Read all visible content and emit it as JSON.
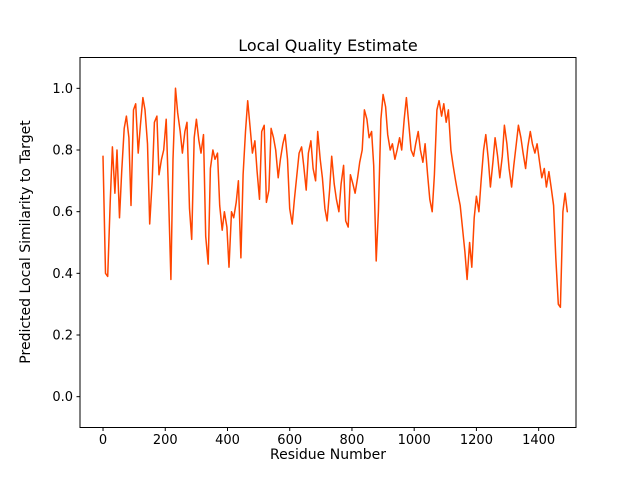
{
  "chart_data": {
    "type": "line",
    "title": "Local Quality Estimate",
    "xlabel": "Residue Number",
    "ylabel": "Predicted Local Similarity to Target",
    "line_color": "#FF4500",
    "background_color": "#FFFFFF",
    "grid": false,
    "legend": null,
    "xlim": [
      -74,
      1520
    ],
    "ylim": [
      -0.1,
      1.1
    ],
    "xticks": [
      0,
      200,
      400,
      600,
      800,
      1000,
      1200,
      1400
    ],
    "xtick_labels": [
      "0",
      "200",
      "400",
      "600",
      "800",
      "1000",
      "1200",
      "1400"
    ],
    "yticks": [
      0.0,
      0.2,
      0.4,
      0.6,
      0.8,
      1.0
    ],
    "ytick_labels": [
      "0.0",
      "0.2",
      "0.4",
      "0.6",
      "0.8",
      "1.0"
    ],
    "points": [
      [
        0,
        0.78
      ],
      [
        8,
        0.4
      ],
      [
        15,
        0.39
      ],
      [
        23,
        0.63
      ],
      [
        30,
        0.81
      ],
      [
        38,
        0.66
      ],
      [
        45,
        0.8
      ],
      [
        53,
        0.58
      ],
      [
        60,
        0.73
      ],
      [
        68,
        0.87
      ],
      [
        75,
        0.91
      ],
      [
        83,
        0.84
      ],
      [
        90,
        0.62
      ],
      [
        98,
        0.93
      ],
      [
        105,
        0.95
      ],
      [
        113,
        0.79
      ],
      [
        120,
        0.88
      ],
      [
        128,
        0.97
      ],
      [
        135,
        0.93
      ],
      [
        143,
        0.82
      ],
      [
        150,
        0.56
      ],
      [
        158,
        0.7
      ],
      [
        165,
        0.89
      ],
      [
        173,
        0.91
      ],
      [
        180,
        0.72
      ],
      [
        188,
        0.77
      ],
      [
        195,
        0.8
      ],
      [
        203,
        0.9
      ],
      [
        210,
        0.67
      ],
      [
        218,
        0.38
      ],
      [
        225,
        0.77
      ],
      [
        233,
        1.0
      ],
      [
        240,
        0.92
      ],
      [
        248,
        0.86
      ],
      [
        255,
        0.79
      ],
      [
        263,
        0.86
      ],
      [
        270,
        0.89
      ],
      [
        278,
        0.61
      ],
      [
        285,
        0.51
      ],
      [
        293,
        0.84
      ],
      [
        300,
        0.9
      ],
      [
        308,
        0.83
      ],
      [
        315,
        0.79
      ],
      [
        323,
        0.85
      ],
      [
        330,
        0.52
      ],
      [
        338,
        0.43
      ],
      [
        345,
        0.74
      ],
      [
        353,
        0.8
      ],
      [
        360,
        0.77
      ],
      [
        368,
        0.79
      ],
      [
        375,
        0.62
      ],
      [
        383,
        0.54
      ],
      [
        390,
        0.6
      ],
      [
        398,
        0.55
      ],
      [
        405,
        0.42
      ],
      [
        413,
        0.6
      ],
      [
        420,
        0.58
      ],
      [
        428,
        0.63
      ],
      [
        435,
        0.7
      ],
      [
        443,
        0.45
      ],
      [
        450,
        0.72
      ],
      [
        458,
        0.86
      ],
      [
        465,
        0.96
      ],
      [
        473,
        0.87
      ],
      [
        480,
        0.79
      ],
      [
        488,
        0.83
      ],
      [
        495,
        0.73
      ],
      [
        503,
        0.64
      ],
      [
        510,
        0.86
      ],
      [
        518,
        0.88
      ],
      [
        525,
        0.63
      ],
      [
        533,
        0.67
      ],
      [
        540,
        0.87
      ],
      [
        548,
        0.84
      ],
      [
        555,
        0.8
      ],
      [
        563,
        0.71
      ],
      [
        570,
        0.77
      ],
      [
        578,
        0.82
      ],
      [
        585,
        0.85
      ],
      [
        593,
        0.77
      ],
      [
        600,
        0.61
      ],
      [
        608,
        0.56
      ],
      [
        615,
        0.64
      ],
      [
        623,
        0.72
      ],
      [
        630,
        0.79
      ],
      [
        638,
        0.81
      ],
      [
        645,
        0.75
      ],
      [
        653,
        0.67
      ],
      [
        660,
        0.79
      ],
      [
        668,
        0.83
      ],
      [
        675,
        0.74
      ],
      [
        683,
        0.7
      ],
      [
        690,
        0.86
      ],
      [
        698,
        0.77
      ],
      [
        705,
        0.71
      ],
      [
        713,
        0.61
      ],
      [
        720,
        0.57
      ],
      [
        728,
        0.67
      ],
      [
        735,
        0.78
      ],
      [
        743,
        0.69
      ],
      [
        750,
        0.64
      ],
      [
        758,
        0.6
      ],
      [
        765,
        0.69
      ],
      [
        773,
        0.75
      ],
      [
        780,
        0.57
      ],
      [
        788,
        0.55
      ],
      [
        795,
        0.72
      ],
      [
        803,
        0.69
      ],
      [
        810,
        0.66
      ],
      [
        818,
        0.71
      ],
      [
        825,
        0.76
      ],
      [
        833,
        0.8
      ],
      [
        840,
        0.93
      ],
      [
        848,
        0.9
      ],
      [
        855,
        0.84
      ],
      [
        863,
        0.86
      ],
      [
        870,
        0.75
      ],
      [
        878,
        0.44
      ],
      [
        885,
        0.6
      ],
      [
        893,
        0.9
      ],
      [
        900,
        0.98
      ],
      [
        908,
        0.94
      ],
      [
        915,
        0.85
      ],
      [
        923,
        0.8
      ],
      [
        930,
        0.82
      ],
      [
        938,
        0.77
      ],
      [
        945,
        0.8
      ],
      [
        953,
        0.84
      ],
      [
        960,
        0.8
      ],
      [
        968,
        0.9
      ],
      [
        975,
        0.97
      ],
      [
        983,
        0.88
      ],
      [
        990,
        0.8
      ],
      [
        998,
        0.78
      ],
      [
        1005,
        0.82
      ],
      [
        1013,
        0.86
      ],
      [
        1020,
        0.8
      ],
      [
        1028,
        0.76
      ],
      [
        1035,
        0.82
      ],
      [
        1043,
        0.72
      ],
      [
        1050,
        0.64
      ],
      [
        1058,
        0.6
      ],
      [
        1065,
        0.72
      ],
      [
        1073,
        0.93
      ],
      [
        1080,
        0.96
      ],
      [
        1088,
        0.91
      ],
      [
        1095,
        0.95
      ],
      [
        1103,
        0.89
      ],
      [
        1110,
        0.93
      ],
      [
        1118,
        0.8
      ],
      [
        1125,
        0.75
      ],
      [
        1133,
        0.7
      ],
      [
        1140,
        0.66
      ],
      [
        1148,
        0.62
      ],
      [
        1155,
        0.55
      ],
      [
        1163,
        0.47
      ],
      [
        1170,
        0.38
      ],
      [
        1178,
        0.5
      ],
      [
        1185,
        0.42
      ],
      [
        1193,
        0.58
      ],
      [
        1200,
        0.65
      ],
      [
        1208,
        0.6
      ],
      [
        1215,
        0.7
      ],
      [
        1223,
        0.8
      ],
      [
        1230,
        0.85
      ],
      [
        1238,
        0.77
      ],
      [
        1245,
        0.68
      ],
      [
        1253,
        0.76
      ],
      [
        1260,
        0.84
      ],
      [
        1268,
        0.78
      ],
      [
        1275,
        0.71
      ],
      [
        1283,
        0.78
      ],
      [
        1290,
        0.88
      ],
      [
        1298,
        0.82
      ],
      [
        1305,
        0.74
      ],
      [
        1313,
        0.68
      ],
      [
        1320,
        0.75
      ],
      [
        1328,
        0.82
      ],
      [
        1335,
        0.88
      ],
      [
        1343,
        0.84
      ],
      [
        1350,
        0.79
      ],
      [
        1358,
        0.74
      ],
      [
        1365,
        0.81
      ],
      [
        1373,
        0.86
      ],
      [
        1380,
        0.82
      ],
      [
        1388,
        0.79
      ],
      [
        1395,
        0.82
      ],
      [
        1403,
        0.76
      ],
      [
        1410,
        0.71
      ],
      [
        1418,
        0.74
      ],
      [
        1425,
        0.68
      ],
      [
        1433,
        0.73
      ],
      [
        1440,
        0.68
      ],
      [
        1448,
        0.62
      ],
      [
        1455,
        0.45
      ],
      [
        1463,
        0.3
      ],
      [
        1470,
        0.29
      ],
      [
        1478,
        0.6
      ],
      [
        1485,
        0.66
      ],
      [
        1492,
        0.6
      ]
    ]
  }
}
